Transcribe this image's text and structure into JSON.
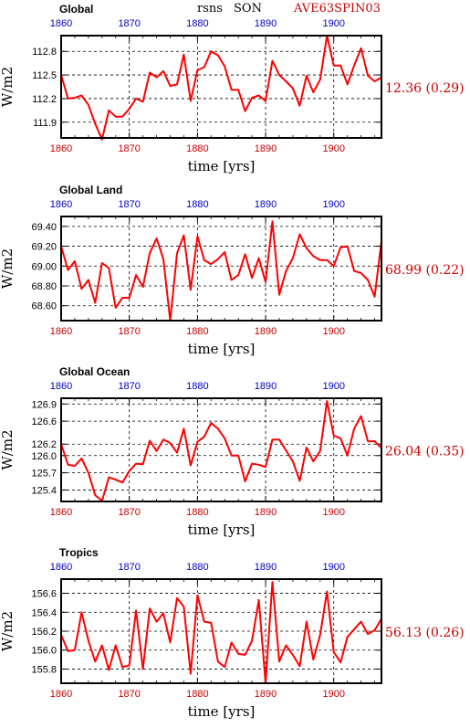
{
  "header": {
    "variable": "rsns",
    "season": "SON",
    "run": "AVE63SPIN03"
  },
  "colors": {
    "line": "#ff0000",
    "top_ticks": "#0000c8",
    "bottom_ticks": "#c80000",
    "stat": "#c80000",
    "frame": "#000000",
    "grid": "#000000"
  },
  "chart_data": [
    {
      "type": "line",
      "title": "Global",
      "xlabel": "time [yrs]",
      "ylabel": "W/m2",
      "xlim": [
        1860,
        1907
      ],
      "ylim": [
        111.7,
        113.0
      ],
      "xticks": [
        1860,
        1870,
        1880,
        1890,
        1900
      ],
      "yticks": [
        "112.8",
        "112.5",
        "112.2",
        "111.9"
      ],
      "grid": true,
      "stat_label": "12.36 (0.29)",
      "x": [
        1860,
        1861,
        1862,
        1863,
        1864,
        1865,
        1866,
        1867,
        1868,
        1869,
        1870,
        1871,
        1872,
        1873,
        1874,
        1875,
        1876,
        1877,
        1878,
        1879,
        1880,
        1881,
        1882,
        1883,
        1884,
        1885,
        1886,
        1887,
        1888,
        1889,
        1890,
        1891,
        1892,
        1893,
        1894,
        1895,
        1896,
        1897,
        1898,
        1899,
        1900,
        1901,
        1902,
        1903,
        1904,
        1905,
        1906,
        1907
      ],
      "y": [
        112.5,
        112.2,
        112.21,
        112.24,
        112.12,
        111.88,
        111.68,
        112.05,
        111.97,
        111.97,
        112.07,
        112.2,
        112.16,
        112.53,
        112.47,
        112.55,
        112.36,
        112.38,
        112.76,
        112.17,
        112.56,
        112.6,
        112.8,
        112.75,
        112.61,
        112.31,
        112.31,
        112.04,
        112.21,
        112.24,
        112.17,
        112.68,
        112.5,
        112.42,
        112.33,
        112.11,
        112.49,
        112.28,
        112.44,
        113.0,
        112.62,
        112.62,
        112.38,
        112.62,
        112.84,
        112.49,
        112.42,
        112.47
      ]
    },
    {
      "type": "line",
      "title": "Global Land",
      "xlabel": "time [yrs]",
      "ylabel": "W/m2",
      "xlim": [
        1860,
        1907
      ],
      "ylim": [
        68.45,
        69.5
      ],
      "xticks": [
        1860,
        1870,
        1880,
        1890,
        1900
      ],
      "yticks": [
        "69.40",
        "69.20",
        "69.00",
        "68.80",
        "68.60"
      ],
      "grid": true,
      "stat_label": "68.99 (0.22)",
      "x": [
        1860,
        1861,
        1862,
        1863,
        1864,
        1865,
        1866,
        1867,
        1868,
        1869,
        1870,
        1871,
        1872,
        1873,
        1874,
        1875,
        1876,
        1877,
        1878,
        1879,
        1880,
        1881,
        1882,
        1883,
        1884,
        1885,
        1886,
        1887,
        1888,
        1889,
        1890,
        1891,
        1892,
        1893,
        1894,
        1895,
        1896,
        1897,
        1898,
        1899,
        1900,
        1901,
        1902,
        1903,
        1904,
        1905,
        1906,
        1907
      ],
      "y": [
        69.2,
        68.96,
        69.05,
        68.77,
        68.86,
        68.63,
        69.03,
        68.98,
        68.58,
        68.68,
        68.68,
        68.91,
        68.79,
        69.13,
        69.28,
        69.07,
        68.45,
        69.13,
        69.31,
        68.76,
        69.3,
        69.06,
        69.02,
        69.07,
        69.14,
        68.86,
        68.91,
        69.12,
        68.88,
        69.08,
        68.84,
        69.45,
        68.71,
        68.95,
        69.08,
        69.32,
        69.18,
        69.1,
        69.06,
        69.06,
        69.0,
        69.19,
        69.2,
        68.95,
        68.93,
        68.86,
        68.69,
        69.25
      ]
    },
    {
      "type": "line",
      "title": "Global Ocean",
      "xlabel": "time [yrs]",
      "ylabel": "W/m2",
      "xlim": [
        1860,
        1907
      ],
      "ylim": [
        125.2,
        127.0
      ],
      "xticks": [
        1860,
        1870,
        1880,
        1890,
        1900
      ],
      "yticks": [
        "126.9",
        "126.6",
        "126.2",
        "126.0",
        "125.7",
        "125.4"
      ],
      "grid": true,
      "stat_label": "26.04 (0.35)",
      "x": [
        1860,
        1861,
        1862,
        1863,
        1864,
        1865,
        1866,
        1867,
        1868,
        1869,
        1870,
        1871,
        1872,
        1873,
        1874,
        1875,
        1876,
        1877,
        1878,
        1879,
        1880,
        1881,
        1882,
        1883,
        1884,
        1885,
        1886,
        1887,
        1888,
        1889,
        1890,
        1891,
        1892,
        1893,
        1894,
        1895,
        1896,
        1897,
        1898,
        1899,
        1900,
        1901,
        1902,
        1903,
        1904,
        1905,
        1906,
        1907
      ],
      "y": [
        126.2,
        125.84,
        125.82,
        125.95,
        125.7,
        125.31,
        125.21,
        125.62,
        125.58,
        125.53,
        125.73,
        125.86,
        125.85,
        126.26,
        126.08,
        126.28,
        126.22,
        126.05,
        126.47,
        125.83,
        126.24,
        126.33,
        126.57,
        126.47,
        126.3,
        126.0,
        126.0,
        125.55,
        125.86,
        125.84,
        125.8,
        126.28,
        126.28,
        126.09,
        125.9,
        125.56,
        126.14,
        125.9,
        126.08,
        126.95,
        126.35,
        126.3,
        126.0,
        126.47,
        126.69,
        126.25,
        126.25,
        126.13
      ]
    },
    {
      "type": "line",
      "title": "Tropics",
      "xlabel": "time [yrs]",
      "ylabel": "W/m2",
      "xlim": [
        1860,
        1907
      ],
      "ylim": [
        155.65,
        156.75
      ],
      "xticks": [
        1860,
        1870,
        1880,
        1890,
        1900
      ],
      "yticks": [
        "156.6",
        "156.4",
        "156.2",
        "156.0",
        "155.8"
      ],
      "grid": true,
      "stat_label": "56.13 (0.26)",
      "x": [
        1860,
        1861,
        1862,
        1863,
        1864,
        1865,
        1866,
        1867,
        1868,
        1869,
        1870,
        1871,
        1872,
        1873,
        1874,
        1875,
        1876,
        1877,
        1878,
        1879,
        1880,
        1881,
        1882,
        1883,
        1884,
        1885,
        1886,
        1887,
        1888,
        1889,
        1890,
        1891,
        1892,
        1893,
        1894,
        1895,
        1896,
        1897,
        1898,
        1899,
        1900,
        1901,
        1902,
        1903,
        1904,
        1905,
        1906,
        1907
      ],
      "y": [
        156.16,
        155.99,
        156.0,
        156.4,
        156.1,
        155.88,
        156.05,
        155.79,
        156.05,
        155.82,
        155.84,
        156.42,
        155.8,
        156.44,
        156.3,
        156.39,
        156.08,
        156.55,
        156.46,
        155.75,
        156.58,
        156.3,
        156.29,
        155.88,
        155.82,
        156.08,
        155.96,
        155.95,
        156.1,
        156.53,
        155.65,
        156.72,
        155.88,
        156.05,
        155.95,
        155.83,
        156.3,
        155.9,
        156.16,
        156.62,
        155.98,
        155.87,
        156.14,
        156.22,
        156.3,
        156.17,
        156.21,
        156.33
      ]
    }
  ]
}
